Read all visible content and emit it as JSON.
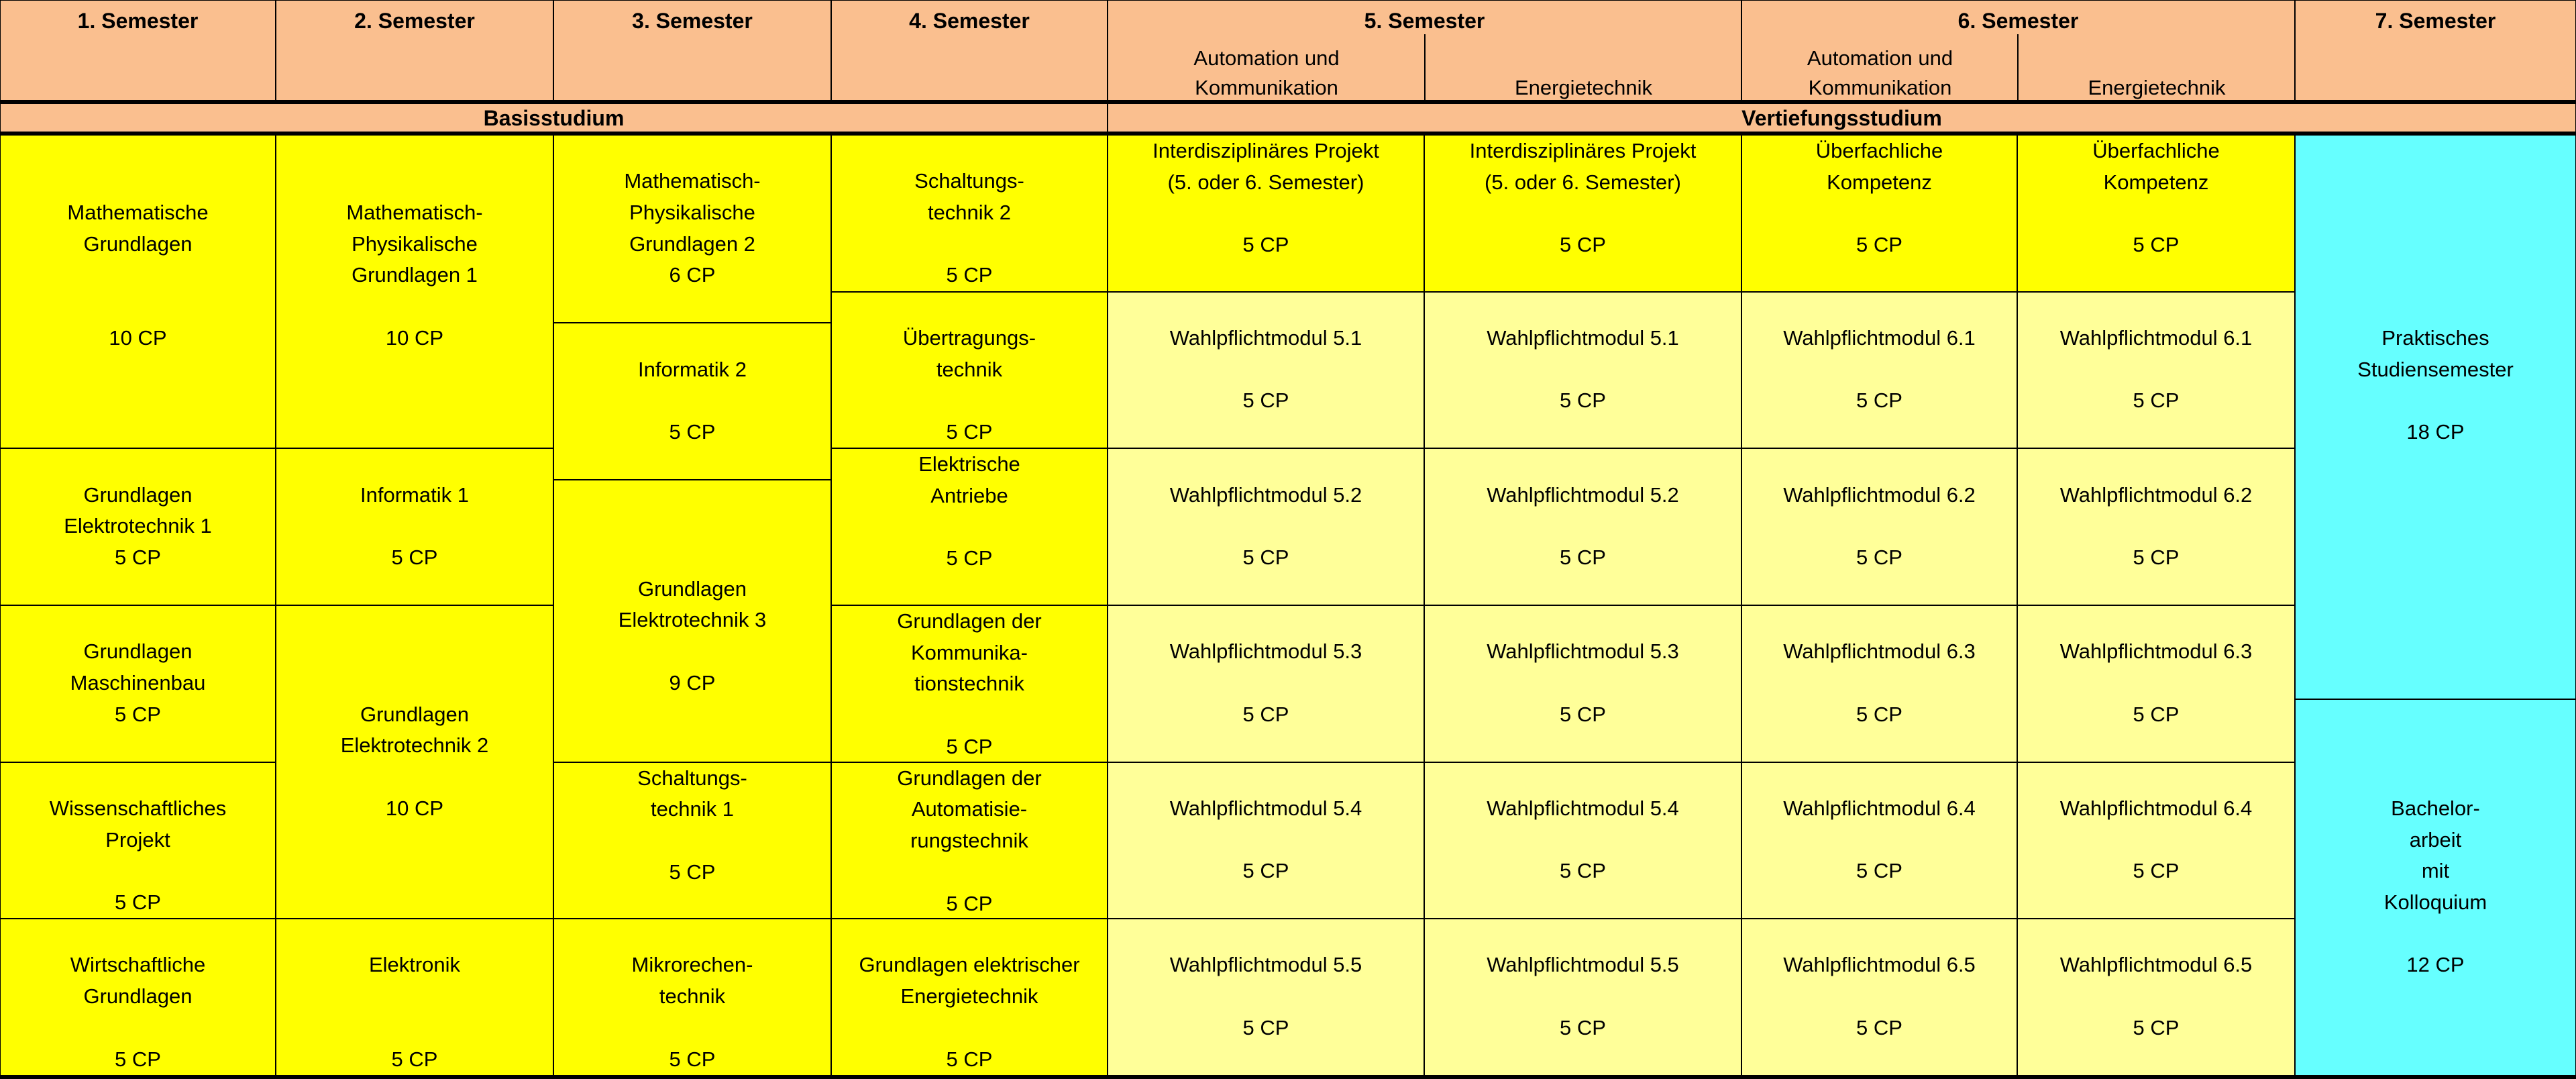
{
  "header": {
    "semesters": [
      "1. Semester",
      "2. Semester",
      "3. Semester",
      "4. Semester",
      "5. Semester",
      "6. Semester",
      "7. Semester"
    ],
    "tracks": {
      "s5_auto": "Automation und\nKommunikation",
      "s5_energy": "Energietechnik",
      "s6_auto": "Automation und\nKommunikation",
      "s6_energy": "Energietechnik"
    }
  },
  "phases": {
    "basis": "Basisstudium",
    "vertiefung": "Vertiefungsstudium"
  },
  "colors": {
    "header": "#FABF8F",
    "core": "#FFFF00",
    "elective": "#FFFF99",
    "practical": "#66FFFF"
  },
  "plan": {
    "s1": [
      {
        "title": "Mathematische\nGrundlagen",
        "cp": "10 CP"
      },
      {
        "title": "Grundlagen\nElektrotechnik 1",
        "cp": "5 CP"
      },
      {
        "title": "Grundlagen\nMaschinenbau",
        "cp": "5 CP"
      },
      {
        "title": "Wissenschaftliches\nProjekt",
        "cp": "5 CP"
      },
      {
        "title": "Wirtschaftliche\nGrundlagen",
        "cp": "5 CP"
      }
    ],
    "s2": [
      {
        "title": "Mathematisch-\nPhysikalische\nGrundlagen 1",
        "cp": "10 CP"
      },
      {
        "title": "Informatik 1",
        "cp": "5 CP"
      },
      {
        "title": "Grundlagen\nElektrotechnik 2",
        "cp": "10 CP"
      },
      {
        "title": "Elektronik",
        "cp": "5 CP"
      }
    ],
    "s3": [
      {
        "title": "Mathematisch-\nPhysikalische\nGrundlagen 2",
        "cp": "6 CP"
      },
      {
        "title": "Informatik 2",
        "cp": "5 CP"
      },
      {
        "title": "Grundlagen\nElektrotechnik 3",
        "cp": "9 CP"
      },
      {
        "title": "Schaltungs-\ntechnik 1",
        "cp": "5 CP"
      },
      {
        "title": "Mikrorechen-\ntechnik",
        "cp": "5 CP"
      }
    ],
    "s4": [
      {
        "title": "Schaltungs-\ntechnik 2",
        "cp": "5 CP"
      },
      {
        "title": "Übertragungs-\ntechnik",
        "cp": "5 CP"
      },
      {
        "title": "Elektrische\nAntriebe",
        "cp": "5 CP"
      },
      {
        "title": "Grundlagen der\nKommunika-\ntionstechnik",
        "cp": "5 CP"
      },
      {
        "title": "Grundlagen der\nAutomatisie-\nrungstechnik",
        "cp": "5 CP"
      },
      {
        "title": "Grundlagen elektrischer\nEnergietechnik",
        "cp": "5 CP"
      }
    ],
    "s5_auto": [
      {
        "title": "Interdisziplinäres Projekt\n(5. oder 6. Semester)",
        "cp": "5 CP"
      },
      {
        "title": "Wahlpflichtmodul 5.1",
        "cp": "5 CP"
      },
      {
        "title": "Wahlpflichtmodul 5.2",
        "cp": "5 CP"
      },
      {
        "title": "Wahlpflichtmodul 5.3",
        "cp": "5 CP"
      },
      {
        "title": "Wahlpflichtmodul 5.4",
        "cp": "5 CP"
      },
      {
        "title": "Wahlpflichtmodul 5.5",
        "cp": "5 CP"
      }
    ],
    "s5_energy": [
      {
        "title": "Interdisziplinäres Projekt\n(5. oder 6. Semester)",
        "cp": "5 CP"
      },
      {
        "title": "Wahlpflichtmodul 5.1",
        "cp": "5 CP"
      },
      {
        "title": "Wahlpflichtmodul 5.2",
        "cp": "5 CP"
      },
      {
        "title": "Wahlpflichtmodul 5.3",
        "cp": "5 CP"
      },
      {
        "title": "Wahlpflichtmodul 5.4",
        "cp": "5 CP"
      },
      {
        "title": "Wahlpflichtmodul 5.5",
        "cp": "5 CP"
      }
    ],
    "s6_auto": [
      {
        "title": "Überfachliche\nKompetenz",
        "cp": "5 CP"
      },
      {
        "title": "Wahlpflichtmodul 6.1",
        "cp": "5 CP"
      },
      {
        "title": "Wahlpflichtmodul 6.2",
        "cp": "5 CP"
      },
      {
        "title": "Wahlpflichtmodul 6.3",
        "cp": "5 CP"
      },
      {
        "title": "Wahlpflichtmodul 6.4",
        "cp": "5 CP"
      },
      {
        "title": "Wahlpflichtmodul 6.5",
        "cp": "5 CP"
      }
    ],
    "s6_energy": [
      {
        "title": "Überfachliche\nKompetenz",
        "cp": "5 CP"
      },
      {
        "title": "Wahlpflichtmodul 6.1",
        "cp": "5 CP"
      },
      {
        "title": "Wahlpflichtmodul 6.2",
        "cp": "5 CP"
      },
      {
        "title": "Wahlpflichtmodul 6.3",
        "cp": "5 CP"
      },
      {
        "title": "Wahlpflichtmodul 6.4",
        "cp": "5 CP"
      },
      {
        "title": "Wahlpflichtmodul 6.5",
        "cp": "5 CP"
      }
    ],
    "s7": [
      {
        "title": "Praktisches\nStudiensemester",
        "cp": "18 CP"
      },
      {
        "title": "Bachelor-\narbeit\nmit\nKolloquium",
        "cp": "12 CP"
      }
    ]
  }
}
